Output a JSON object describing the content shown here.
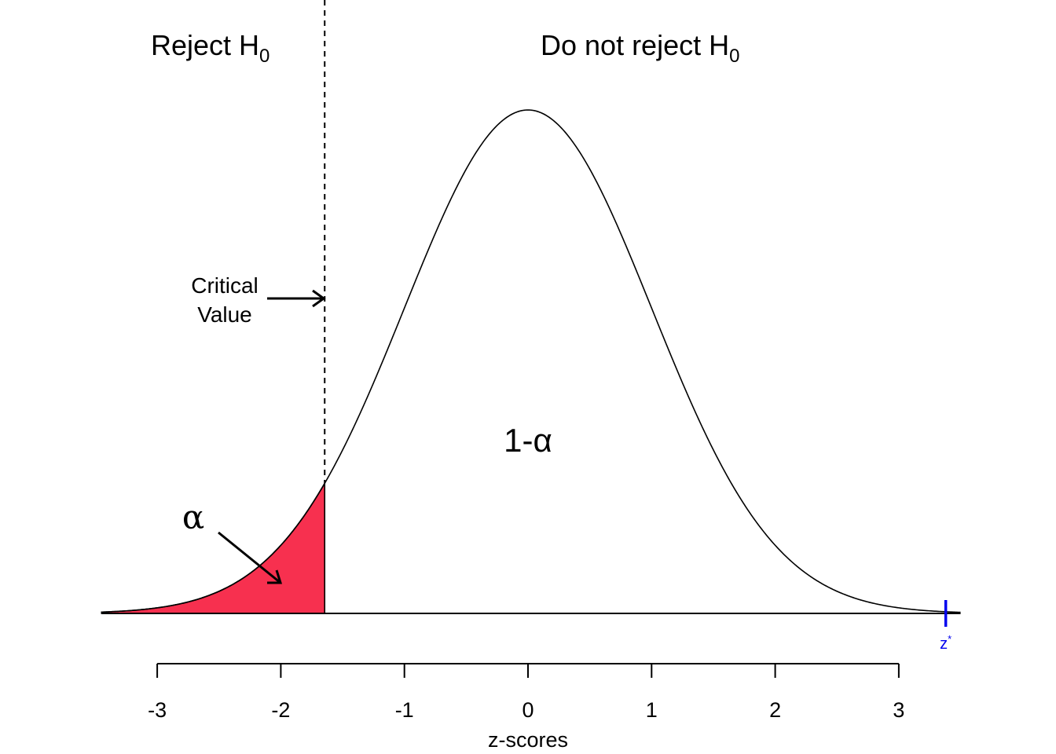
{
  "chart_data": {
    "type": "area",
    "title": "",
    "xlabel": "z-scores",
    "ylabel": "",
    "xlim": [
      -3.45,
      3.5
    ],
    "x_ticks": [
      -3,
      -2,
      -1,
      0,
      1,
      2,
      3
    ],
    "x_tick_labels": [
      "-3",
      "-2",
      "-1",
      "0",
      "1",
      "2",
      "3"
    ],
    "distribution": "standard-normal",
    "critical_value": -1.645,
    "shaded_tail": "left",
    "colors": {
      "curve": "#000000",
      "shaded_region": "#f7304f",
      "critical_line": "#000000",
      "zstar_marker": "#0000ee"
    },
    "annotations": {
      "reject_region": {
        "text": "Reject H",
        "subscript": "0"
      },
      "accept_region": {
        "text": "Do not reject H",
        "subscript": "0"
      },
      "critical_line1": "Critical",
      "critical_line2": "Value",
      "alpha": "α",
      "confidence": "1-α",
      "zstar": {
        "text": "z",
        "superscript": "*",
        "x": 3.38
      }
    }
  }
}
